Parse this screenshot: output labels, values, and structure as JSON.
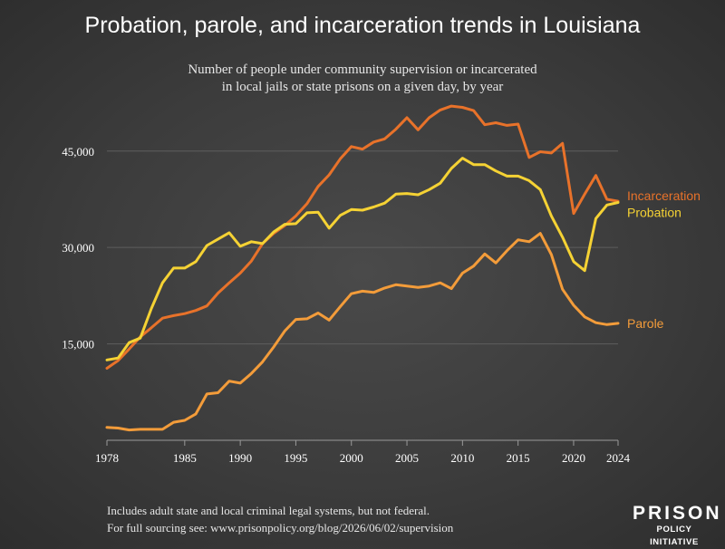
{
  "header": {
    "title": "Probation, parole, and incarceration trends in Louisiana",
    "subtitle_line1": "Number of people under community supervision or incarcerated",
    "subtitle_line2": "in local jails or state prisons on a given day, by year"
  },
  "footer": {
    "note_line1": "Includes adult state and local criminal legal systems, but not federal.",
    "note_line2": "For full sourcing see: www.prisonpolicy.org/blog/2026/06/02/supervision"
  },
  "logo": {
    "line1": "PRISON",
    "line2": "POLICY INITIATIVE"
  },
  "chart_data": {
    "type": "line",
    "title": "Probation, parole, and incarceration trends in Louisiana",
    "xlabel": "",
    "ylabel": "",
    "xlim": [
      1978,
      2024
    ],
    "ylim": [
      0,
      53000
    ],
    "grid": "horizontal",
    "x_ticks": [
      1978,
      1985,
      1990,
      1995,
      2000,
      2005,
      2010,
      2015,
      2020,
      2024
    ],
    "y_ticks": [
      15000,
      30000,
      45000
    ],
    "y_tick_labels": [
      "15,000",
      "30,000",
      "45,000"
    ],
    "x": [
      1978,
      1979,
      1980,
      1981,
      1982,
      1983,
      1984,
      1985,
      1986,
      1987,
      1988,
      1989,
      1990,
      1991,
      1992,
      1993,
      1994,
      1995,
      1996,
      1997,
      1998,
      1999,
      2000,
      2001,
      2002,
      2003,
      2004,
      2005,
      2006,
      2007,
      2008,
      2009,
      2010,
      2011,
      2012,
      2013,
      2014,
      2015,
      2016,
      2017,
      2018,
      2019,
      2020,
      2021,
      2022,
      2023,
      2024
    ],
    "series": [
      {
        "name": "Incarceration",
        "color": "#e8722a",
        "values": [
          11200,
          12400,
          14200,
          16100,
          17500,
          19000,
          19400,
          19700,
          20200,
          20900,
          22900,
          24500,
          26000,
          27900,
          30600,
          32200,
          33400,
          34900,
          36800,
          39500,
          41300,
          43800,
          45700,
          45300,
          46400,
          46900,
          48400,
          50200,
          48300,
          50200,
          51400,
          52000,
          51800,
          51300,
          49100,
          49400,
          49000,
          49200,
          44000,
          44900,
          44700,
          46200,
          35300,
          38300,
          41200,
          37500,
          37200
        ]
      },
      {
        "name": "Probation",
        "color": "#f5d234",
        "values": [
          12500,
          12800,
          15200,
          15900,
          20500,
          24500,
          26800,
          26800,
          27800,
          30300,
          31300,
          32300,
          30200,
          30900,
          30600,
          32400,
          33600,
          33700,
          35400,
          35500,
          33000,
          35000,
          35900,
          35800,
          36300,
          36900,
          38300,
          38400,
          38200,
          39000,
          40000,
          42300,
          43900,
          42900,
          42900,
          41900,
          41100,
          41100,
          40400,
          39000,
          34900,
          31600,
          27800,
          26400,
          34500,
          36600,
          37000
        ]
      },
      {
        "name": "Parole",
        "color": "#f39c3a",
        "values": [
          2000,
          1900,
          1600,
          1700,
          1700,
          1700,
          2800,
          3100,
          4100,
          7200,
          7400,
          9200,
          8900,
          10400,
          12200,
          14500,
          17000,
          18800,
          18900,
          19800,
          18700,
          20800,
          22800,
          23200,
          23000,
          23700,
          24200,
          24000,
          23800,
          24000,
          24500,
          23600,
          26000,
          27100,
          29000,
          27600,
          29500,
          31200,
          30900,
          32200,
          28900,
          23500,
          21000,
          19200,
          18300,
          18000,
          18200
        ]
      }
    ]
  }
}
